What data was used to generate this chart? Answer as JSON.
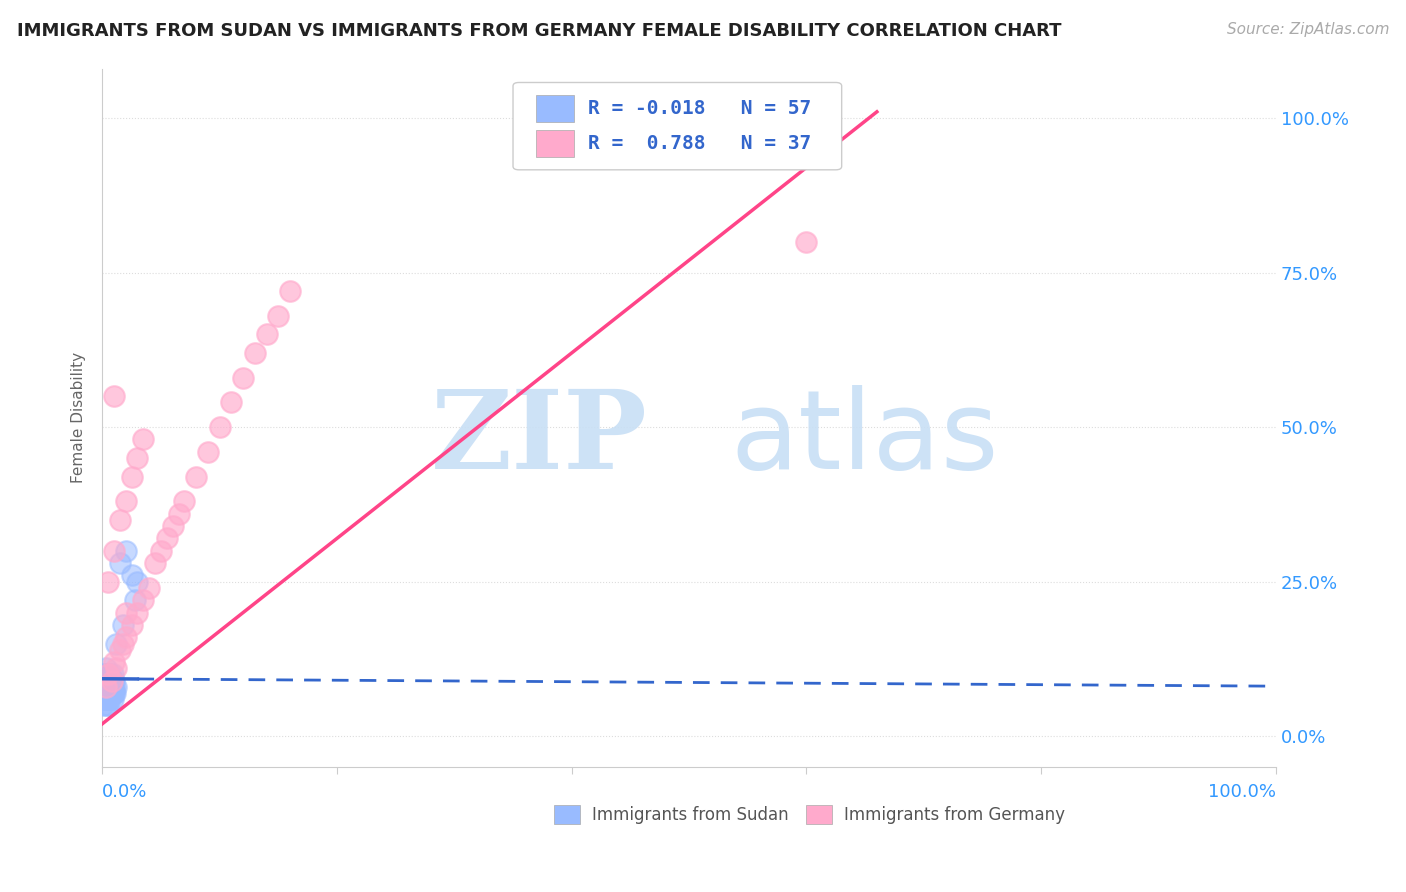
{
  "title": "IMMIGRANTS FROM SUDAN VS IMMIGRANTS FROM GERMANY FEMALE DISABILITY CORRELATION CHART",
  "source": "Source: ZipAtlas.com",
  "ylabel": "Female Disability",
  "y_tick_labels": [
    "0.0%",
    "25.0%",
    "50.0%",
    "75.0%",
    "100.0%"
  ],
  "y_tick_values": [
    0.0,
    0.25,
    0.5,
    0.75,
    1.0
  ],
  "x_tick_values": [
    0.0,
    0.2,
    0.4,
    0.6,
    0.8,
    1.0
  ],
  "sudan_color": "#99bbff",
  "germany_color": "#ffaacc",
  "sudan_R": -0.018,
  "sudan_N": 57,
  "germany_R": 0.788,
  "germany_N": 37,
  "watermark_zip": "ZIP",
  "watermark_atlas": "atlas",
  "watermark_color_zip": "#c8dff5",
  "watermark_color_atlas": "#c8dff5",
  "background_color": "#ffffff",
  "grid_color": "#dddddd",
  "sudan_x": [
    0.0005,
    0.0008,
    0.001,
    0.0012,
    0.0015,
    0.002,
    0.002,
    0.0025,
    0.003,
    0.003,
    0.003,
    0.0035,
    0.004,
    0.004,
    0.004,
    0.0045,
    0.005,
    0.005,
    0.006,
    0.006,
    0.007,
    0.007,
    0.008,
    0.008,
    0.009,
    0.009,
    0.01,
    0.01,
    0.011,
    0.012,
    0.001,
    0.001,
    0.002,
    0.002,
    0.003,
    0.003,
    0.004,
    0.004,
    0.005,
    0.005,
    0.001,
    0.002,
    0.003,
    0.004,
    0.005,
    0.006,
    0.007,
    0.008,
    0.009,
    0.01,
    0.015,
    0.02,
    0.025,
    0.028,
    0.03,
    0.012,
    0.018
  ],
  "sudan_y": [
    0.08,
    0.09,
    0.07,
    0.1,
    0.08,
    0.09,
    0.1,
    0.08,
    0.09,
    0.07,
    0.11,
    0.08,
    0.09,
    0.07,
    0.1,
    0.08,
    0.09,
    0.1,
    0.08,
    0.09,
    0.07,
    0.1,
    0.08,
    0.09,
    0.07,
    0.1,
    0.08,
    0.09,
    0.07,
    0.08,
    0.06,
    0.07,
    0.06,
    0.07,
    0.06,
    0.08,
    0.07,
    0.06,
    0.07,
    0.08,
    0.05,
    0.06,
    0.05,
    0.06,
    0.05,
    0.07,
    0.06,
    0.07,
    0.06,
    0.07,
    0.28,
    0.3,
    0.26,
    0.22,
    0.25,
    0.15,
    0.18
  ],
  "germany_x": [
    0.003,
    0.005,
    0.008,
    0.01,
    0.012,
    0.015,
    0.018,
    0.02,
    0.025,
    0.03,
    0.035,
    0.04,
    0.045,
    0.05,
    0.055,
    0.06,
    0.065,
    0.07,
    0.08,
    0.09,
    0.1,
    0.11,
    0.12,
    0.13,
    0.14,
    0.15,
    0.16,
    0.005,
    0.01,
    0.015,
    0.02,
    0.025,
    0.03,
    0.035,
    0.6,
    0.01,
    0.02
  ],
  "germany_y": [
    0.08,
    0.1,
    0.09,
    0.12,
    0.11,
    0.14,
    0.15,
    0.16,
    0.18,
    0.2,
    0.22,
    0.24,
    0.28,
    0.3,
    0.32,
    0.34,
    0.36,
    0.38,
    0.42,
    0.46,
    0.5,
    0.54,
    0.58,
    0.62,
    0.65,
    0.68,
    0.72,
    0.25,
    0.3,
    0.35,
    0.38,
    0.42,
    0.45,
    0.48,
    0.8,
    0.55,
    0.2
  ]
}
